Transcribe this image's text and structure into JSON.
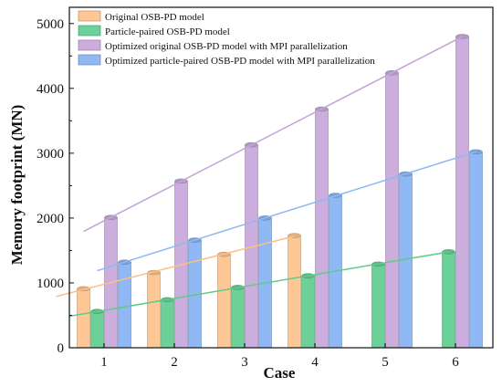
{
  "chart_data": {
    "type": "bar",
    "title": "",
    "xlabel": "Case",
    "ylabel": "Memory footprint (MN)",
    "categories": [
      "1",
      "2",
      "3",
      "4",
      "5",
      "6"
    ],
    "ylim": [
      0,
      5250
    ],
    "yticks": [
      0,
      1000,
      2000,
      3000,
      4000,
      5000
    ],
    "grid": false,
    "legend_position": "top-left",
    "series": [
      {
        "name": "Original OSB-PD model",
        "color": "#FDC896",
        "trend_color": "#FFBE82",
        "values": [
          910,
          1160,
          1440,
          1730,
          null,
          null
        ]
      },
      {
        "name": "Particle-paired OSB-PD model",
        "color": "#6BD199",
        "trend_color": "#5FCB87",
        "values": [
          560,
          740,
          930,
          1110,
          1290,
          1480
        ]
      },
      {
        "name": "Optimized original OSB-PD model with MPI parallelization",
        "color": "#CBAEDD",
        "trend_color": "#C3A3DA",
        "values": [
          2010,
          2570,
          3130,
          3680,
          4240,
          4800
        ]
      },
      {
        "name": "Optimized particle-paired OSB-PD model with MPI parallelization",
        "color": "#8FB8F5",
        "trend_color": "#8CB8F0",
        "values": [
          1320,
          1660,
          2000,
          2350,
          2680,
          3020
        ]
      }
    ]
  }
}
